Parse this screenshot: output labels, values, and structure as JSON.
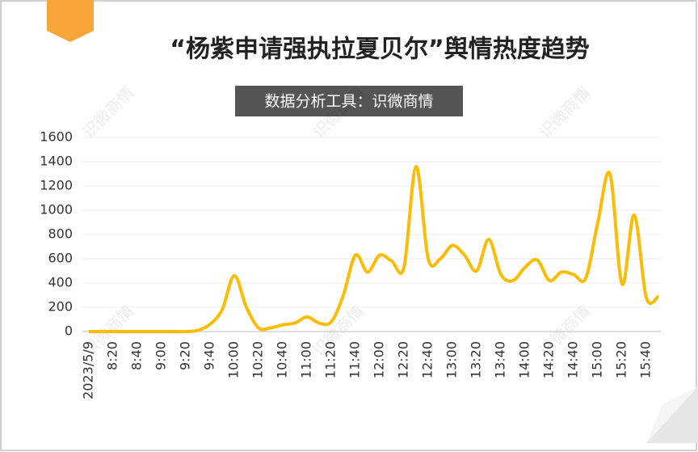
{
  "chart_data": {
    "type": "line",
    "title": "“杨紫申请强执拉夏贝尔”舆情热度趋势",
    "subtitle": "数据分析工具：识微商情",
    "watermark": "识微商情",
    "categories": [
      "2023/5/9",
      null,
      "8:20",
      null,
      "8:40",
      null,
      "9:00",
      null,
      "9:20",
      null,
      "9:40",
      null,
      "10:00",
      null,
      "10:20",
      null,
      "10:40",
      null,
      "11:00",
      null,
      "11:20",
      null,
      "11:40",
      null,
      "12:00",
      null,
      "12:20",
      null,
      "12:40",
      null,
      "13:00",
      null,
      "13:20",
      null,
      "13:40",
      null,
      "14:00",
      null,
      "14:20",
      null,
      "14:40",
      null,
      "15:00",
      null,
      "15:20",
      null,
      "15:40",
      null
    ],
    "series": [
      {
        "name": "舆情热度",
        "color": "#fbbc05",
        "values": [
          0,
          0,
          0,
          0,
          0,
          0,
          0,
          0,
          0,
          10,
          60,
          180,
          460,
          200,
          30,
          30,
          55,
          70,
          120,
          70,
          80,
          300,
          630,
          490,
          630,
          580,
          530,
          1360,
          600,
          600,
          710,
          630,
          500,
          760,
          470,
          420,
          530,
          590,
          420,
          490,
          470,
          440,
          900,
          1300,
          390,
          960,
          280,
          290
        ]
      }
    ],
    "ylim": [
      0,
      1600
    ],
    "yticks": [
      0,
      200,
      400,
      600,
      800,
      1000,
      1200,
      1400,
      1600
    ],
    "grid": true
  }
}
